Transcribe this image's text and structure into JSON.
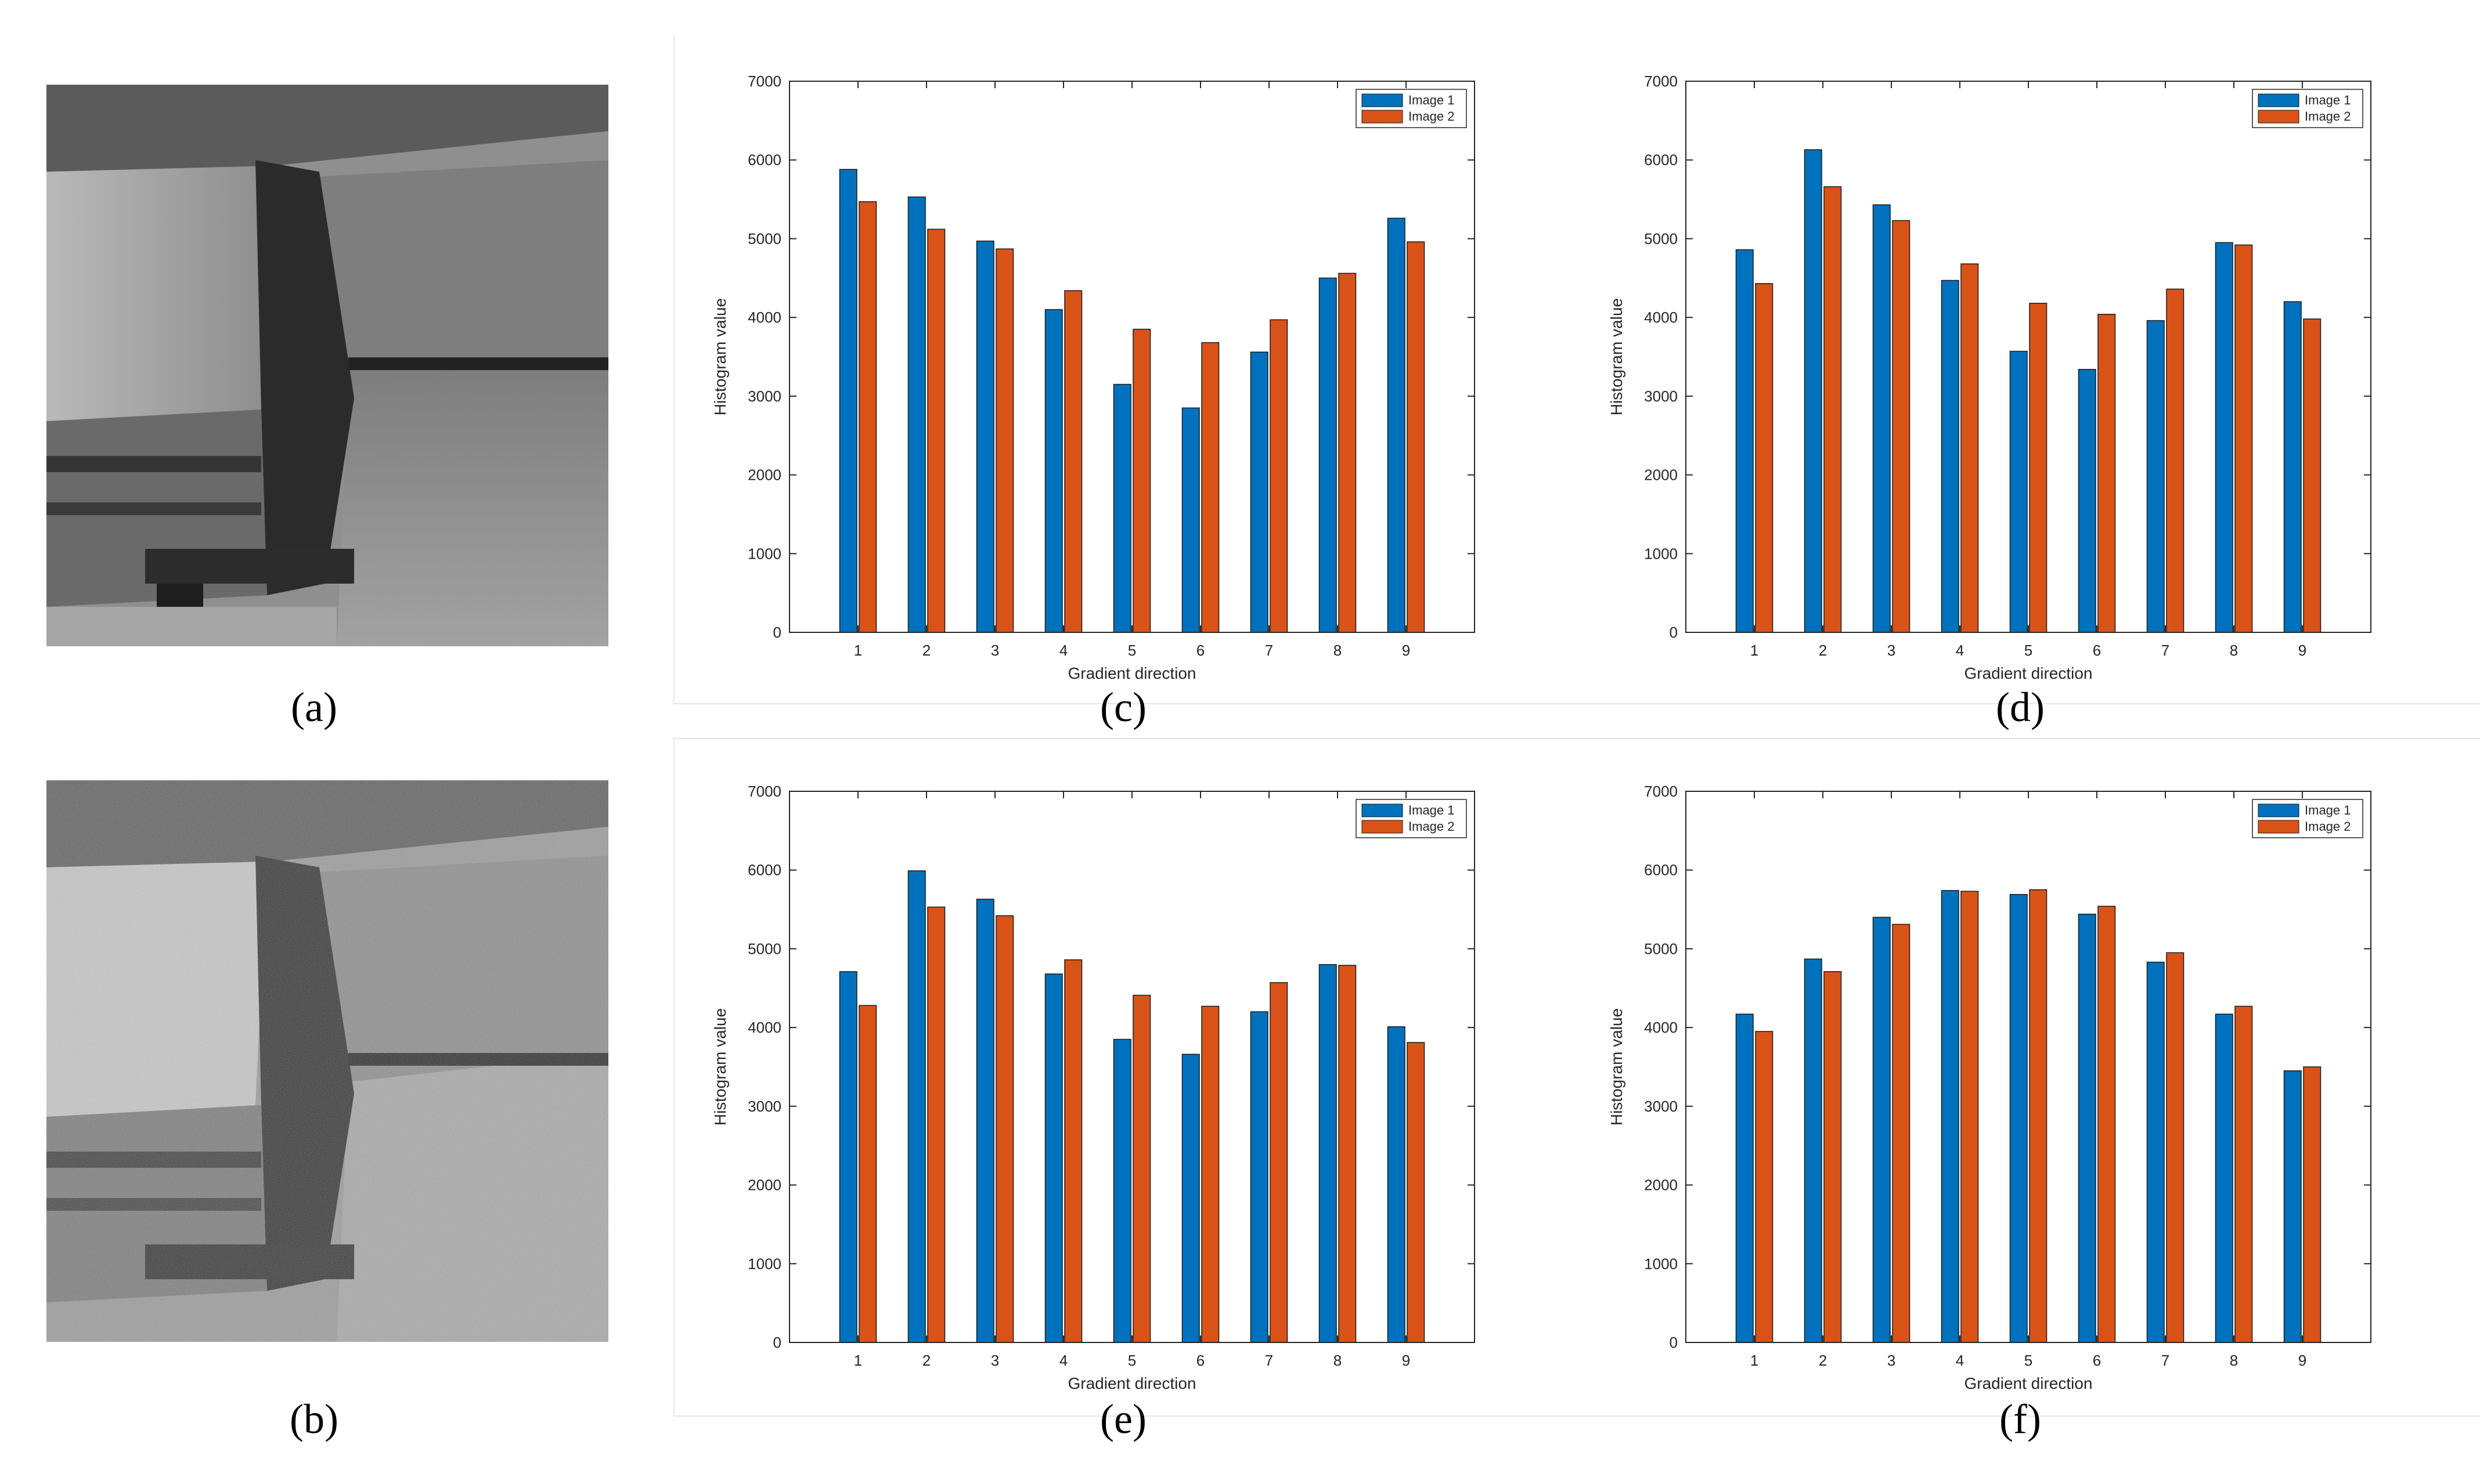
{
  "captions": {
    "a": "(a)",
    "b": "(b)",
    "c": "(c)",
    "d": "(d)",
    "e": "(e)",
    "f": "(f)"
  },
  "images": {
    "a": {
      "alt": "grayscale building corner photo",
      "icon": "photo-icon"
    },
    "b": {
      "alt": "noisy grayscale building corner photo",
      "icon": "photo-icon"
    }
  },
  "colors": {
    "series1": "#0072BD",
    "series2": "#D95319",
    "axis": "#262626"
  },
  "chart_data": [
    {
      "id": "c",
      "type": "bar",
      "title": "",
      "xlabel": "Gradient direction",
      "ylabel": "Histogram value",
      "categories": [
        "1",
        "2",
        "3",
        "4",
        "5",
        "6",
        "7",
        "8",
        "9"
      ],
      "ylim": [
        0,
        7000
      ],
      "yticks": [
        0,
        1000,
        2000,
        3000,
        4000,
        5000,
        6000,
        7000
      ],
      "legend": "top-right",
      "series": [
        {
          "name": "Image 1",
          "values": [
            5880,
            5530,
            4970,
            4100,
            3150,
            2850,
            3560,
            4500,
            5260
          ]
        },
        {
          "name": "Image 2",
          "values": [
            5470,
            5120,
            4870,
            4340,
            3850,
            3680,
            3970,
            4560,
            4960
          ]
        }
      ]
    },
    {
      "id": "d",
      "type": "bar",
      "title": "",
      "xlabel": "Gradient direction",
      "ylabel": "Histogram value",
      "categories": [
        "1",
        "2",
        "3",
        "4",
        "5",
        "6",
        "7",
        "8",
        "9"
      ],
      "ylim": [
        0,
        7000
      ],
      "yticks": [
        0,
        1000,
        2000,
        3000,
        4000,
        5000,
        6000,
        7000
      ],
      "legend": "top-right",
      "series": [
        {
          "name": "Image 1",
          "values": [
            4860,
            6130,
            5430,
            4470,
            3570,
            3340,
            3960,
            4950,
            4200
          ]
        },
        {
          "name": "Image 2",
          "values": [
            4430,
            5660,
            5230,
            4680,
            4180,
            4040,
            4360,
            4920,
            3980
          ]
        }
      ]
    },
    {
      "id": "e",
      "type": "bar",
      "title": "",
      "xlabel": "Gradient direction",
      "ylabel": "Histogram value",
      "categories": [
        "1",
        "2",
        "3",
        "4",
        "5",
        "6",
        "7",
        "8",
        "9"
      ],
      "ylim": [
        0,
        7000
      ],
      "yticks": [
        0,
        1000,
        2000,
        3000,
        4000,
        5000,
        6000,
        7000
      ],
      "legend": "top-right",
      "series": [
        {
          "name": "Image 1",
          "values": [
            4710,
            5990,
            5630,
            4680,
            3850,
            3660,
            4200,
            4800,
            4010
          ]
        },
        {
          "name": "Image 2",
          "values": [
            4280,
            5530,
            5420,
            4860,
            4410,
            4270,
            4570,
            4790,
            3810
          ]
        }
      ]
    },
    {
      "id": "f",
      "type": "bar",
      "title": "",
      "xlabel": "Gradient direction",
      "ylabel": "Histogram value",
      "categories": [
        "1",
        "2",
        "3",
        "4",
        "5",
        "6",
        "7",
        "8",
        "9"
      ],
      "ylim": [
        0,
        7000
      ],
      "yticks": [
        0,
        1000,
        2000,
        3000,
        4000,
        5000,
        6000,
        7000
      ],
      "legend": "top-right",
      "series": [
        {
          "name": "Image 1",
          "values": [
            4170,
            4870,
            5400,
            5740,
            5690,
            5440,
            4830,
            4170,
            3450
          ]
        },
        {
          "name": "Image 2",
          "values": [
            3950,
            4710,
            5310,
            5730,
            5750,
            5540,
            4950,
            4270,
            3500
          ]
        }
      ]
    }
  ]
}
